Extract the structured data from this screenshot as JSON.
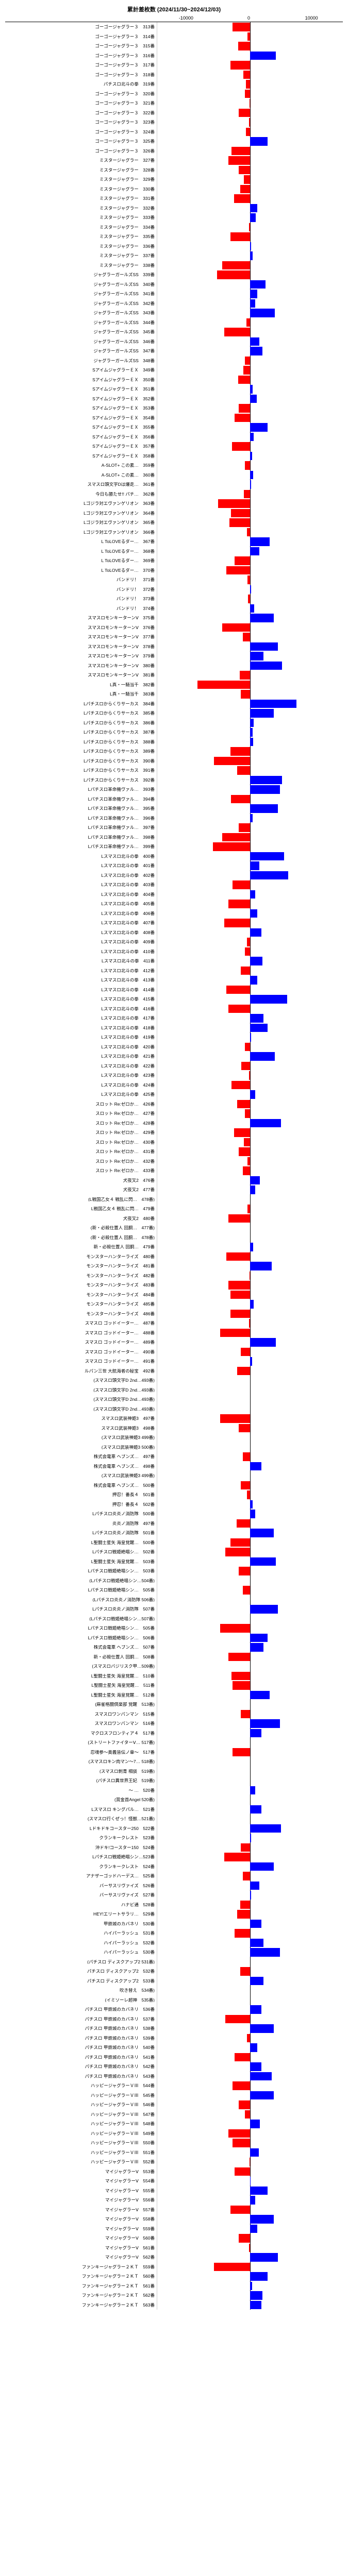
{
  "chart": {
    "title": "累計差枚数 (2024/11/30~2024/12/03)",
    "title_fontsize": 11,
    "label_fontsize": 8.5,
    "xlim": [
      -15000,
      15000
    ],
    "xticks": [
      -10000,
      0,
      10000
    ],
    "background_color": "#ffffff",
    "grid_color": "#cccccc",
    "colors": {
      "negative": "#ff0000",
      "positive": "#0000ff"
    },
    "rows": [
      {
        "label": "ゴーゴージャグラー３　313番",
        "value": -2800
      },
      {
        "label": "ゴーゴージャグラー３　314番",
        "value": -400
      },
      {
        "label": "ゴーゴージャグラー３　315番",
        "value": -1900
      },
      {
        "label": "ゴーゴージャグラー３　316番",
        "value": 4200
      },
      {
        "label": "ゴーゴージャグラー３　317番",
        "value": -3200
      },
      {
        "label": "ゴーゴージャグラー３　318番",
        "value": -1100
      },
      {
        "label": "パチスロ北斗の拳　319番",
        "value": -700
      },
      {
        "label": "ゴーゴージャグラー３　320番",
        "value": -800
      },
      {
        "label": "ゴーゴージャグラー３　321番",
        "value": -100
      },
      {
        "label": "ゴーゴージャグラー３　322番",
        "value": -1800
      },
      {
        "label": "ゴーゴージャグラー３　323番",
        "value": -200
      },
      {
        "label": "ゴーゴージャグラー３　324番",
        "value": -700
      },
      {
        "label": "ゴーゴージャグラー３　325番",
        "value": 2800
      },
      {
        "label": "ゴーゴージャグラー３　326番",
        "value": -3000
      },
      {
        "label": "ミスタージャグラー　327番",
        "value": -3500
      },
      {
        "label": "ミスタージャグラー　328番",
        "value": -1800
      },
      {
        "label": "ミスタージャグラー　329番",
        "value": -1000
      },
      {
        "label": "ミスタージャグラー　330番",
        "value": -1600
      },
      {
        "label": "ミスタージャグラー　331番",
        "value": -2600
      },
      {
        "label": "ミスタージャグラー　332番",
        "value": 1200
      },
      {
        "label": "ミスタージャグラー　333番",
        "value": 900
      },
      {
        "label": "ミスタージャグラー　334番",
        "value": -200
      },
      {
        "label": "ミスタージャグラー　335番",
        "value": -3200
      },
      {
        "label": "ミスタージャグラー　336番",
        "value": 200
      },
      {
        "label": "ミスタージャグラー　337番",
        "value": 400
      },
      {
        "label": "ミスタージャグラー　338番",
        "value": -4500
      },
      {
        "label": "ジャグラーガールズSS　339番",
        "value": -5300
      },
      {
        "label": "ジャグラーガールズSS　340番",
        "value": 2500
      },
      {
        "label": "ジャグラーガールズSS　341番",
        "value": 1200
      },
      {
        "label": "ジャグラーガールズSS　342番",
        "value": 800
      },
      {
        "label": "ジャグラーガールズSS　343番",
        "value": 4000
      },
      {
        "label": "ジャグラーガールズSS　344番",
        "value": -600
      },
      {
        "label": "ジャグラーガールズSS　345番",
        "value": -4200
      },
      {
        "label": "ジャグラーガールズSS　346番",
        "value": 1500
      },
      {
        "label": "ジャグラーガールズSS　347番",
        "value": 2000
      },
      {
        "label": "ジャグラーガールズSS　348番",
        "value": -800
      },
      {
        "label": "SアイムジャグラーＥＸ　349番",
        "value": -1100
      },
      {
        "label": "SアイムジャグラーＥＸ　350番",
        "value": -1900
      },
      {
        "label": "SアイムジャグラーＥＸ　351番",
        "value": 400
      },
      {
        "label": "SアイムジャグラーＥＸ　352番",
        "value": 1100
      },
      {
        "label": "SアイムジャグラーＥＸ　353番",
        "value": -1800
      },
      {
        "label": "SアイムジャグラーＥＸ　354番",
        "value": -2500
      },
      {
        "label": "SアイムジャグラーＥＸ　355番",
        "value": 2800
      },
      {
        "label": "SアイムジャグラーＥＸ　356番",
        "value": 600
      },
      {
        "label": "SアイムジャグラーＥＸ　357番",
        "value": -2900
      },
      {
        "label": "SアイムジャグラーＥＸ　358番",
        "value": 300
      },
      {
        "label": "A-SLOT+ この素…　359番",
        "value": -800
      },
      {
        "label": "A-SLOT+ この素…　360番",
        "value": 500
      },
      {
        "label": "スマスロ頭文字Dは爆走…　361番",
        "value": 200
      },
      {
        "label": "今日も勝たせ!! パチ…　362番",
        "value": -1000
      },
      {
        "label": "Lゴジラ対エヴァンゲリオン　363番",
        "value": -5200
      },
      {
        "label": "Lゴジラ対エヴァンゲリオン　364番",
        "value": -3100
      },
      {
        "label": "Lゴジラ対エヴァンゲリオン　365番",
        "value": -3300
      },
      {
        "label": "Lゴジラ対エヴァンゲリオン　366番",
        "value": -500
      },
      {
        "label": "L ToLOVEるダー…　367番",
        "value": 3200
      },
      {
        "label": "L ToLOVEるダー…　368番",
        "value": 1500
      },
      {
        "label": "L ToLOVEるダー…　369番",
        "value": -2500
      },
      {
        "label": "L ToLOVEるダー…　370番",
        "value": -3800
      },
      {
        "label": "バンドリ！　371番",
        "value": -400
      },
      {
        "label": "バンドリ！　372番",
        "value": 200
      },
      {
        "label": "バンドリ！　373番",
        "value": -300
      },
      {
        "label": "バンドリ！　374番",
        "value": 700
      },
      {
        "label": "スマスロモンキーターンⅤ　375番",
        "value": 3800
      },
      {
        "label": "スマスロモンキーターンⅤ　376番",
        "value": -4500
      },
      {
        "label": "スマスロモンキーターンⅤ　377番",
        "value": -1200
      },
      {
        "label": "スマスロモンキーターンⅤ　378番",
        "value": 4500
      },
      {
        "label": "スマスロモンキーターンⅤ　379番",
        "value": 2200
      },
      {
        "label": "スマスロモンキーターンⅤ　380番",
        "value": 5200
      },
      {
        "label": "スマスロモンキーターンⅤ　381番",
        "value": -1700
      },
      {
        "label": "L真・一騎当千　382番",
        "value": -8500
      },
      {
        "label": "L真・一騎当千　383番",
        "value": -1500
      },
      {
        "label": "Lパチスロからくりサーカス　384番",
        "value": 7500
      },
      {
        "label": "Lパチスロからくりサーカス　385番",
        "value": 3800
      },
      {
        "label": "Lパチスロからくりサーカス　386番",
        "value": 600
      },
      {
        "label": "Lパチスロからくりサーカス　387番",
        "value": 400
      },
      {
        "label": "Lパチスロからくりサーカス　388番",
        "value": 500
      },
      {
        "label": "Lパチスロからくりサーカス　389番",
        "value": -3200
      },
      {
        "label": "Lパチスロからくりサーカス　390番",
        "value": -5800
      },
      {
        "label": "Lパチスロからくりサーカス　391番",
        "value": -2100
      },
      {
        "label": "Lパチスロからくりサーカス　392番",
        "value": 5200
      },
      {
        "label": "Lパチスロ革命機ヴァル…　393番",
        "value": 4800
      },
      {
        "label": "Lパチスロ革命機ヴァル…　394番",
        "value": -3100
      },
      {
        "label": "Lパチスロ革命機ヴァル…　395番",
        "value": 4500
      },
      {
        "label": "Lパチスロ革命機ヴァル…　396番",
        "value": 400
      },
      {
        "label": "Lパチスロ革命機ヴァル…　397番",
        "value": -1800
      },
      {
        "label": "Lパチスロ革命機ヴァル…　398番",
        "value": -4500
      },
      {
        "label": "Lパチスロ革命機ヴァル…　399番",
        "value": -6000
      },
      {
        "label": "Lスマスロ北斗の拳　400番",
        "value": 5500
      },
      {
        "label": "Lスマスロ北斗の拳　401番",
        "value": 1500
      },
      {
        "label": "Lスマスロ北斗の拳　402番",
        "value": 6200
      },
      {
        "label": "Lスマスロ北斗の拳　403番",
        "value": -2800
      },
      {
        "label": "Lスマスロ北斗の拳　404番",
        "value": 800
      },
      {
        "label": "Lスマスロ北斗の拳　405番",
        "value": -3500
      },
      {
        "label": "Lスマスロ北斗の拳　406番",
        "value": 1200
      },
      {
        "label": "Lスマスロ北斗の拳　407番",
        "value": -4200
      },
      {
        "label": "Lスマスロ北斗の拳　408番",
        "value": 1800
      },
      {
        "label": "Lスマスロ北斗の拳　409番",
        "value": -500
      },
      {
        "label": "Lスマスロ北斗の拳　410番",
        "value": -800
      },
      {
        "label": "Lスマスロ北斗の拳　411番",
        "value": 2000
      },
      {
        "label": "Lスマスロ北斗の拳　412番",
        "value": -1500
      },
      {
        "label": "Lスマスロ北斗の拳　413番",
        "value": 1200
      },
      {
        "label": "Lスマスロ北斗の拳　414番",
        "value": -3800
      },
      {
        "label": "Lスマスロ北斗の拳　415番",
        "value": 6000
      },
      {
        "label": "Lスマスロ北斗の拳　416番",
        "value": -3500
      },
      {
        "label": "Lスマスロ北斗の拳　417番",
        "value": 2200
      },
      {
        "label": "Lスマスロ北斗の拳　418番",
        "value": 2800
      },
      {
        "label": "Lスマスロ北斗の拳　419番",
        "value": 200
      },
      {
        "label": "Lスマスロ北斗の拳　420番",
        "value": -800
      },
      {
        "label": "Lスマスロ北斗の拳　421番",
        "value": 4000
      },
      {
        "label": "Lスマスロ北斗の拳　422番",
        "value": -1400
      },
      {
        "label": "Lスマスロ北斗の拳　423番",
        "value": -200
      },
      {
        "label": "Lスマスロ北斗の拳　424番",
        "value": -3000
      },
      {
        "label": "Lスマスロ北斗の拳　425番",
        "value": 800
      },
      {
        "label": "スロット Re:ゼロか…　426番",
        "value": -2100
      },
      {
        "label": "スロット Re:ゼロか…　427番",
        "value": -800
      },
      {
        "label": "スロット Re:ゼロか…　428番",
        "value": 5000
      },
      {
        "label": "スロット Re:ゼロか…　429番",
        "value": -2600
      },
      {
        "label": "スロット Re:ゼロか…　430番",
        "value": -1000
      },
      {
        "label": "スロット Re:ゼロか…　431番",
        "value": -1800
      },
      {
        "label": "スロット Re:ゼロか…　432番",
        "value": -400
      },
      {
        "label": "スロット Re:ゼロか…　433番",
        "value": -1200
      },
      {
        "label": "犬夜叉2　476番",
        "value": 1600
      },
      {
        "label": "犬夜叉2　477番",
        "value": 800
      },
      {
        "label": "(L戦国乙女４ 戦乱に閃…　478番)",
        "value": 0
      },
      {
        "label": "L戦国乙女４ 戦乱に閃…　479番",
        "value": -400
      },
      {
        "label": "犬夜叉2　480番",
        "value": -3500
      },
      {
        "label": "(新・必殺仕置人 回胴…　477番)",
        "value": 0
      },
      {
        "label": "(新・必殺仕置人 回胴…　478番)",
        "value": 0
      },
      {
        "label": "新・必殺仕置人 回胴…　479番",
        "value": 500
      },
      {
        "label": "モンスターハンターライズ　480番",
        "value": -3800
      },
      {
        "label": "モンスターハンターライズ　481番",
        "value": 3500
      },
      {
        "label": "モンスターハンターライズ　482番",
        "value": -100
      },
      {
        "label": "モンスターハンターライズ　483番",
        "value": -3500
      },
      {
        "label": "モンスターハンターライズ　484番",
        "value": -3200
      },
      {
        "label": "モンスターハンターライズ　485番",
        "value": 600
      },
      {
        "label": "モンスターハンターライズ　486番",
        "value": -3200
      },
      {
        "label": "スマスロ ゴッドイーター…　487番",
        "value": -200
      },
      {
        "label": "スマスロ ゴッドイーター…　488番",
        "value": -4800
      },
      {
        "label": "スマスロ ゴッドイーター…　489番",
        "value": 4200
      },
      {
        "label": "スマスロ ゴッドイーター…　490番",
        "value": -1500
      },
      {
        "label": "スマスロ ゴッドイーター…　491番",
        "value": 300
      },
      {
        "label": "ルパン三世 大航海者の秘宝　492番",
        "value": -2100
      },
      {
        "label": "(スマスロ頭文字D 2nd…493番)",
        "value": 0
      },
      {
        "label": "(スマスロ頭文字D 2nd…493番)",
        "value": 0
      },
      {
        "label": "(スマスロ頭文字D 2nd…493番)",
        "value": 0
      },
      {
        "label": "(スマスロ頭文字D 2nd…493番)",
        "value": 0
      },
      {
        "label": "スマスロ武装神姫3　497番",
        "value": -4800
      },
      {
        "label": "スマスロ武装神姫3　498番",
        "value": -1800
      },
      {
        "label": "(スマスロ武装神姫3 499番)",
        "value": 0
      },
      {
        "label": "(スマスロ武装神姫3 500番)",
        "value": 0
      },
      {
        "label": "株式会電車 ヘブンズ…　497番",
        "value": -1200
      },
      {
        "label": "株式会電車 ヘブンズ…　498番",
        "value": 1800
      },
      {
        "label": "(スマスロ武装神姫3 499番)",
        "value": 0
      },
      {
        "label": "株式会電車 ヘブンズ…　500番",
        "value": -1500
      },
      {
        "label": "押忍！番長４　501番",
        "value": -500
      },
      {
        "label": "押忍！番長４　502番",
        "value": 400
      },
      {
        "label": "Lパチスロ炎炎ノ消防隊　500番",
        "value": 800
      },
      {
        "label": "炎炎ノ消防隊　497番",
        "value": -2200
      },
      {
        "label": "Lパチスロ炎炎ノ消防隊　501番",
        "value": 3800
      },
      {
        "label": "L聖闘士星矢 海皇覚醒…　500番",
        "value": -3200
      },
      {
        "label": "Lパチスロ戦姫絶唱シ…　502番",
        "value": -4000
      },
      {
        "label": "L聖闘士星矢 海皇覚醒…　503番",
        "value": 4200
      },
      {
        "label": "Lパチスロ戦姫絶唱シン…　503番",
        "value": -1800
      },
      {
        "label": "(Lパチスロ戦姫絶唱シン…504番)",
        "value": 0
      },
      {
        "label": "Lパチスロ戦姫絶唱シン…　505番",
        "value": -1200
      },
      {
        "label": "(Lパチスロ炎炎ノ消防隊 506番)",
        "value": 0
      },
      {
        "label": "Lパチスロ炎炎ノ消防隊　507番",
        "value": 4500
      },
      {
        "label": "(Lパチスロ戦姫絶唱シン…507番)",
        "value": 0
      },
      {
        "label": "Lパチスロ戦姫絶唱シン…　505番",
        "value": -4800
      },
      {
        "label": "Lパチスロ戦姫絶唱シン…　506番",
        "value": 2800
      },
      {
        "label": "株式会電車 ヘブンズ…　507番",
        "value": 2200
      },
      {
        "label": "新・必殺仕置人 回胴…　508番",
        "value": -3500
      },
      {
        "label": "(スマスロバジリスク甲…509番)",
        "value": 0
      },
      {
        "label": "L聖闘士星矢 海皇覚醒…　510番",
        "value": -3000
      },
      {
        "label": "L聖闘士星矢 海皇覚醒…　511番",
        "value": -2800
      },
      {
        "label": "L聖闘士星矢 海皇覚醒…　512番",
        "value": 3200
      },
      {
        "label": "(麻雀格闘倶楽部 覚醒　513番)",
        "value": 0
      },
      {
        "label": "スマスロワンパンマン　515番",
        "value": -1500
      },
      {
        "label": "スマスロワンパンマン　516番",
        "value": 4800
      },
      {
        "label": "マクロスフロンティア４　517番",
        "value": 1800
      },
      {
        "label": "(ストリートファイターⅤ… 517番)",
        "value": 0
      },
      {
        "label": "忍魂参～奥義皆伝ノ章～　517番",
        "value": -2800
      },
      {
        "label": "(スマスロキン肉マン～7… 518番)",
        "value": 0
      },
      {
        "label": "(スマスロ刺青 相談　519番)",
        "value": 0
      },
      {
        "label": "(パチスロ異世界王妃　519番)",
        "value": 0
      },
      {
        "label": "～ …　520番",
        "value": 800
      },
      {
        "label": "(賞金首Angel 520番)",
        "value": 0
      },
      {
        "label": "Lスマスロ キングパル…　521番",
        "value": 1800
      },
      {
        "label": "(スマスロ行くぜっ！怪獣…521番)",
        "value": 0
      },
      {
        "label": "Lドキドキコースター250　522番",
        "value": 5000
      },
      {
        "label": "クランキークレスト　523番",
        "value": 200
      },
      {
        "label": "沖ドキ!コースター150　524番",
        "value": -1500
      },
      {
        "label": "Lパチスロ戦姫絶唱シン…523番",
        "value": -4200
      },
      {
        "label": "クランキークレスト　524番",
        "value": 3800
      },
      {
        "label": "アナザーゴッドハーデス…　525番",
        "value": -1200
      },
      {
        "label": "バーサスリヴァイズ　526番",
        "value": 1500
      },
      {
        "label": "バーサスリヴァイズ　527番",
        "value": 200
      },
      {
        "label": "ハナビ通　528番",
        "value": -1600
      },
      {
        "label": "HEY!エリートサラリ…　529番",
        "value": -2100
      },
      {
        "label": "甲鉄城のカバネリ　530番",
        "value": 1800
      },
      {
        "label": "ハイパーラッシュ　531番",
        "value": -2500
      },
      {
        "label": "ハイパーラッシュ　532番",
        "value": 2200
      },
      {
        "label": "ハイパーラッシュ　530番",
        "value": 4800
      },
      {
        "label": "(パチスロ ディスクアップ2 531番)",
        "value": 0
      },
      {
        "label": "パチスロ ディスクアップ2　532番",
        "value": -1600
      },
      {
        "label": "パチスロ ディスクアップ2　533番",
        "value": 2200
      },
      {
        "label": "吹き替え　534番)",
        "value": 0
      },
      {
        "label": "(イミソーレ超神　535番)",
        "value": 0
      },
      {
        "label": "パチスロ 甲鉄城のカバネリ　536番",
        "value": 1800
      },
      {
        "label": "パチスロ 甲鉄城のカバネリ　537番",
        "value": -4000
      },
      {
        "label": "パチスロ 甲鉄城のカバネリ　538番",
        "value": 3800
      },
      {
        "label": "パチスロ 甲鉄城のカバネリ　539番",
        "value": -500
      },
      {
        "label": "パチスロ 甲鉄城のカバネリ　540番",
        "value": 1200
      },
      {
        "label": "パチスロ 甲鉄城のカバネリ　541番",
        "value": -2500
      },
      {
        "label": "パチスロ 甲鉄城のカバネリ　542番",
        "value": 1800
      },
      {
        "label": "パチスロ 甲鉄城のカバネリ　543番",
        "value": 3500
      },
      {
        "label": "ハッピージャグラーＶⅢ　544番",
        "value": -2800
      },
      {
        "label": "ハッピージャグラーＶⅢ　545番",
        "value": 3800
      },
      {
        "label": "ハッピージャグラーＶⅢ　546番",
        "value": -1800
      },
      {
        "label": "ハッピージャグラーＶⅢ　547番",
        "value": -800
      },
      {
        "label": "ハッピージャグラーＶⅢ　548番",
        "value": 1600
      },
      {
        "label": "ハッピージャグラーＶⅢ　549番",
        "value": -3500
      },
      {
        "label": "ハッピージャグラーＶⅢ　550番",
        "value": -2800
      },
      {
        "label": "ハッピージャグラーＶⅢ　551番",
        "value": 1400
      },
      {
        "label": "ハッピージャグラーＶⅢ　552番",
        "value": -100
      },
      {
        "label": "マイジャグラーⅤ　553番",
        "value": -2500
      },
      {
        "label": "マイジャグラーⅤ　554番",
        "value": 100
      },
      {
        "label": "マイジャグラーⅤ　555番",
        "value": 2800
      },
      {
        "label": "マイジャグラーⅤ　556番",
        "value": 800
      },
      {
        "label": "マイジャグラーⅤ　557番",
        "value": -3200
      },
      {
        "label": "マイジャグラーⅤ　558番",
        "value": 3800
      },
      {
        "label": "マイジャグラーⅤ　559番",
        "value": 1200
      },
      {
        "label": "マイジャグラーⅤ　560番",
        "value": -1800
      },
      {
        "label": "マイジャグラーⅤ　561番",
        "value": -200
      },
      {
        "label": "マイジャグラーⅤ　562番",
        "value": 4500
      },
      {
        "label": "ファンキージャグラー２ＫＴ　559番",
        "value": -5800
      },
      {
        "label": "ファンキージャグラー２ＫＴ　560番",
        "value": 2800
      },
      {
        "label": "ファンキージャグラー２ＫＴ　561番",
        "value": 300
      },
      {
        "label": "ファンキージャグラー２ＫＴ　562番",
        "value": 2000
      },
      {
        "label": "ファンキージャグラー２ＫＴ　563番",
        "value": 1800
      }
    ]
  }
}
